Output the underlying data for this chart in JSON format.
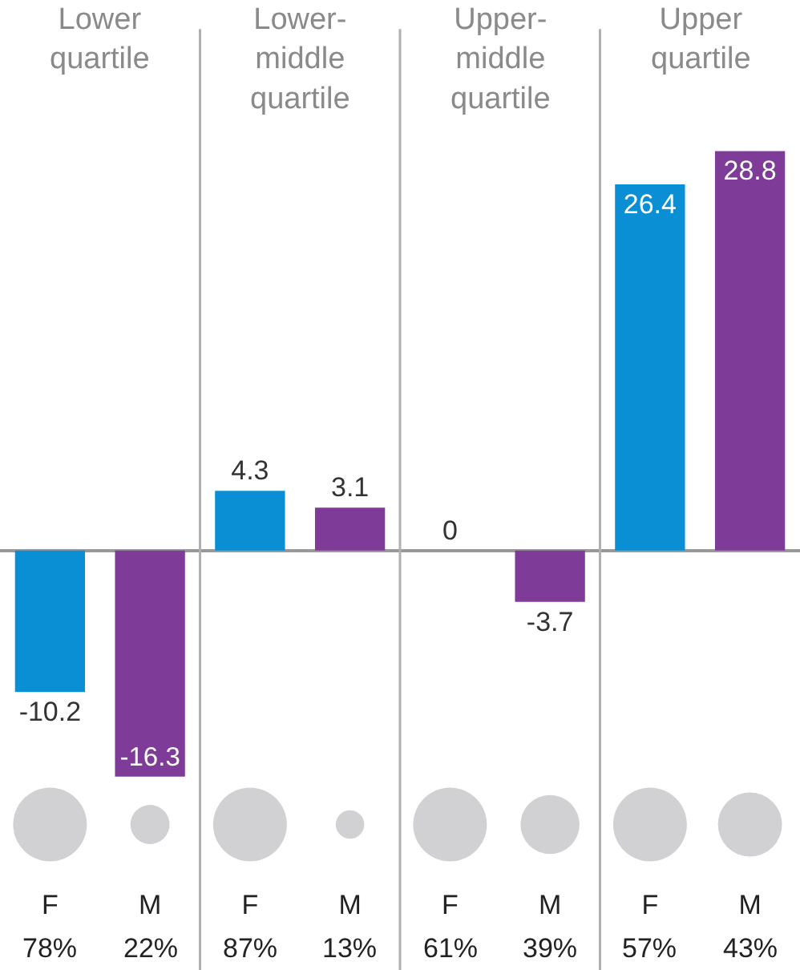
{
  "chart_data": [
    {
      "type": "bar",
      "title": "Lower\nquartile",
      "categories": [
        "F",
        "M"
      ],
      "colors": [
        "#0b8fd4",
        "#7e3b97"
      ],
      "values": [
        -10.2,
        -16.3
      ],
      "data_labels": true,
      "tick_labels": "x"
    },
    {
      "type": "bar",
      "title": "Lower-\nmiddle\nquartile",
      "categories": [
        "F",
        "M"
      ],
      "colors": [
        "#0b8fd4",
        "#7e3b97"
      ],
      "values": [
        4.3,
        3.1
      ],
      "data_labels": true,
      "tick_labels": "x"
    },
    {
      "type": "bar",
      "title": "Upper-\nmiddle\nquartile",
      "categories": [
        "F",
        "M"
      ],
      "colors": [
        "#0b8fd4",
        "#7e3b97"
      ],
      "values": [
        0,
        -3.7
      ],
      "data_labels": true,
      "tick_labels": "x"
    },
    {
      "type": "bar",
      "title": "Upper\nquartile",
      "categories": [
        "F",
        "M"
      ],
      "colors": [
        "#0b8fd4",
        "#7e3b97"
      ],
      "values": [
        26.4,
        28.8
      ],
      "data_labels": true,
      "tick_labels": "x"
    },
    {
      "type": "other",
      "color": "#bdbec0",
      "values": [
        78,
        22
      ],
      "value_labels": [
        "78%",
        "22%"
      ]
    },
    {
      "type": "other",
      "color": "#bdbec0",
      "values": [
        87,
        13
      ],
      "value_labels": [
        "87%",
        "13%"
      ]
    },
    {
      "type": "other",
      "color": "#bdbec0",
      "values": [
        61,
        39
      ],
      "value_labels": [
        "61%",
        "39%"
      ]
    },
    {
      "type": "other",
      "color": "#bdbec0",
      "values": [
        57,
        43
      ],
      "value_labels": [
        "57%",
        "43%"
      ]
    }
  ]
}
